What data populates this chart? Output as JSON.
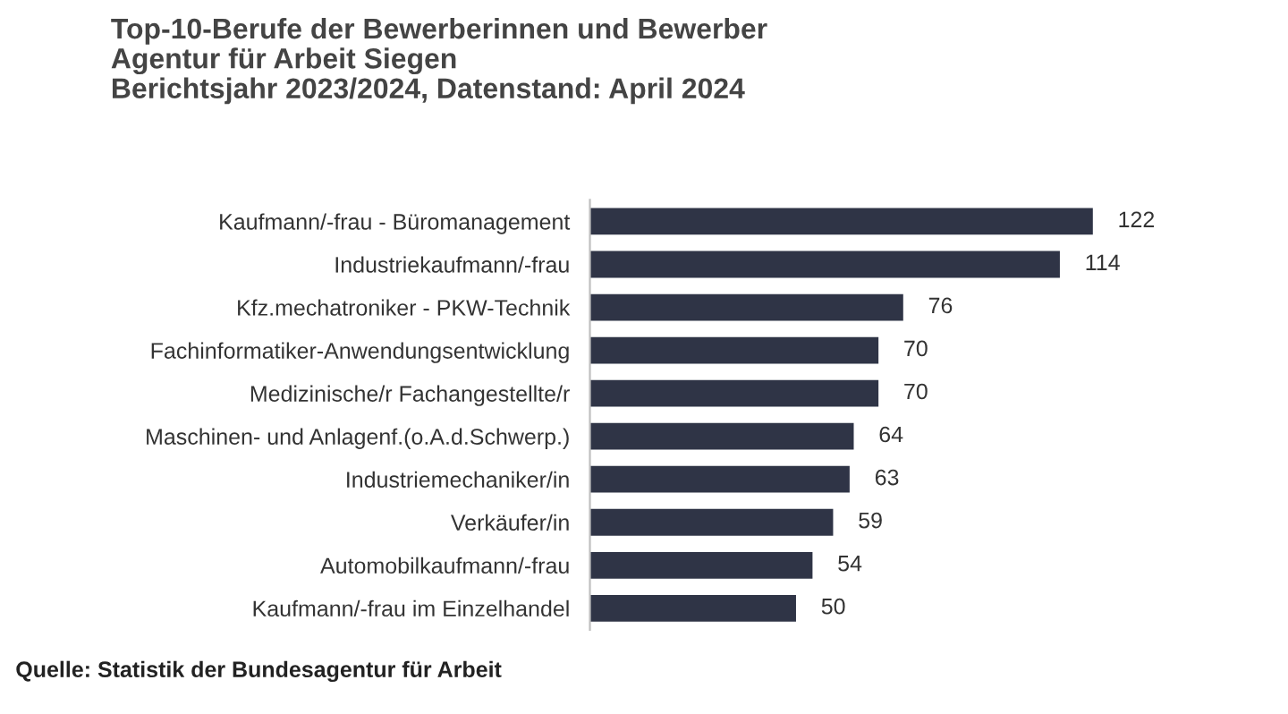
{
  "chart_data": {
    "type": "bar",
    "orientation": "horizontal",
    "title": "Top-10-Berufe der Bewerberinnen und Bewerber\nAgentur für Arbeit Siegen\nBerichtsjahr 2023/2024, Datenstand: April 2024",
    "categories": [
      "Kaufmann/-frau - Büromanagement",
      "Industriekaufmann/-frau",
      "Kfz.mechatroniker - PKW-Technik",
      "Fachinformatiker-Anwendungsentwicklung",
      "Medizinische/r Fachangestellte/r",
      "Maschinen- und Anlagenf.(o.A.d.Schwerp.)",
      "Industriemechaniker/in",
      "Verkäufer/in",
      "Automobilkaufmann/-frau",
      "Kaufmann/-frau im Einzelhandel"
    ],
    "values": [
      122,
      114,
      76,
      70,
      70,
      64,
      63,
      59,
      54,
      50
    ],
    "color": "#2f3446",
    "data_labels": true,
    "grid": false,
    "legend": false,
    "tick_labels": "y",
    "annotations": [
      "Quelle: Statistik der Bundesagentur für Arbeit"
    ]
  }
}
